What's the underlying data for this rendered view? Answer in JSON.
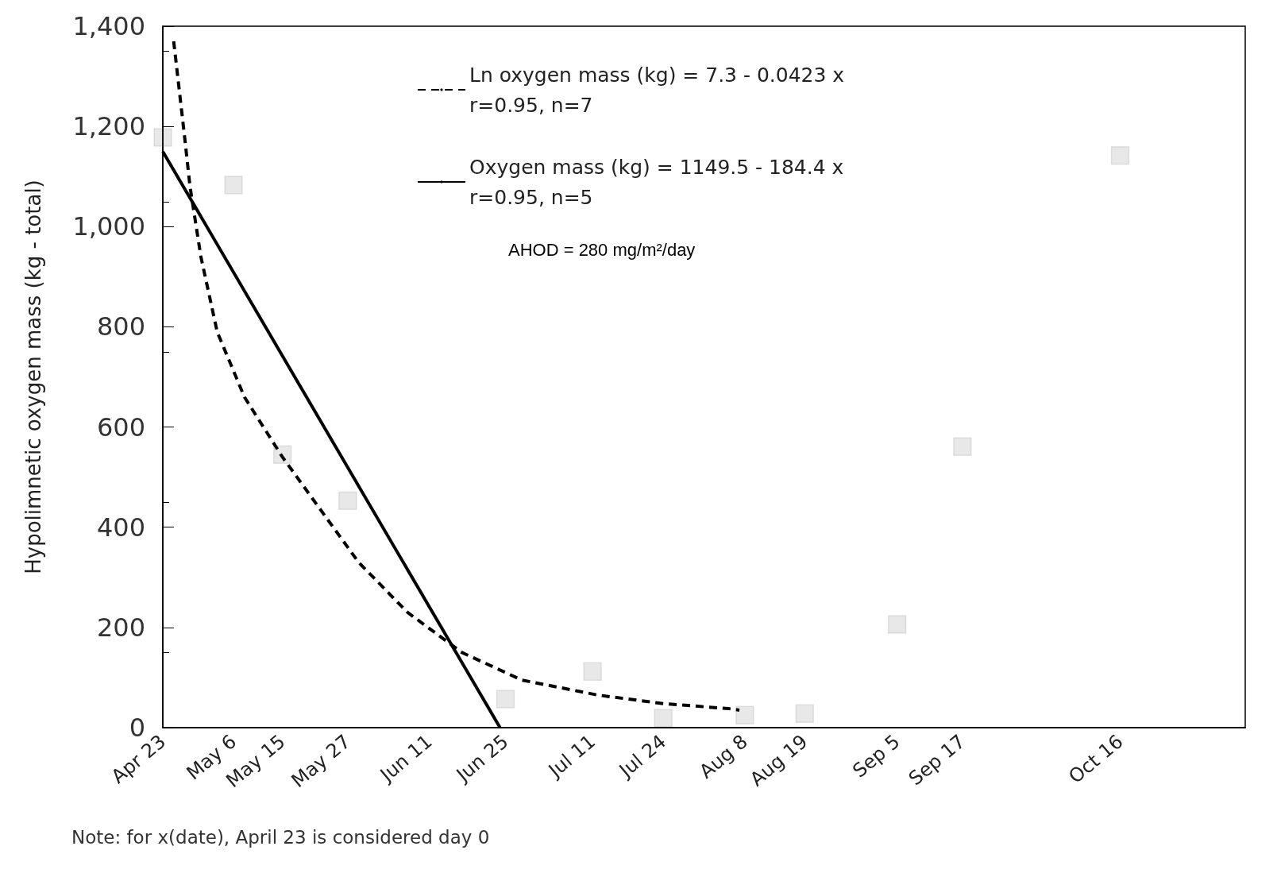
{
  "chart_data": {
    "type": "scatter",
    "ylabel": "Hypolimnetic oxygen mass (kg - total)",
    "xlim": [
      "--04-23",
      "--11-08"
    ],
    "ylim": [
      0,
      1400
    ],
    "xticks": [
      {
        "value": "--04-23",
        "label": "Apr 23"
      },
      {
        "value": "--05-06",
        "label": "May 6"
      },
      {
        "value": "--05-15",
        "label": "May 15"
      },
      {
        "value": "--05-27",
        "label": "May 27"
      },
      {
        "value": "--06-11",
        "label": "Jun 11"
      },
      {
        "value": "--06-25",
        "label": "Jun 25"
      },
      {
        "value": "--07-11",
        "label": "Jul 11"
      },
      {
        "value": "--07-24",
        "label": "Jul 24"
      },
      {
        "value": "--08-08",
        "label": "Aug 8"
      },
      {
        "value": "--08-19",
        "label": "Aug 19"
      },
      {
        "value": "--09-05",
        "label": "Sep 5"
      },
      {
        "value": "--09-17",
        "label": "Sep 17"
      },
      {
        "value": "--10-16",
        "label": "Oct 16"
      }
    ],
    "yticks": [
      0,
      200,
      400,
      600,
      800,
      {
        "value": 1000,
        "label": "1,000"
      },
      {
        "value": 1200,
        "label": "1,200"
      },
      {
        "value": 1400,
        "label": "1,400"
      }
    ],
    "grid": false,
    "legend": "top",
    "series": [
      {
        "color": "#444444",
        "marker": "square",
        "x": [
          "--04-23",
          "--05-06",
          "--05-15",
          "--05-27",
          "--06-25",
          "--07-11",
          "--07-24",
          "--08-08",
          "--08-19",
          "--09-05",
          "--09-17",
          "--10-16"
        ],
        "values": [
          1178,
          1083,
          545,
          453,
          57,
          112,
          19,
          25,
          28,
          206,
          561,
          1142
        ]
      },
      {
        "type": "line",
        "name": "Ln oxygen mass (kg) = 7.3 - 0.0423 x\nr=0.95, n=7",
        "color": "#000000",
        "line_style": "dashed",
        "marker": "none",
        "x": [
          "--04-25",
          "--04-27",
          "--04-28",
          "--04-30",
          "--05-03",
          "--05-08",
          "--05-15",
          "--05-23",
          "--05-29",
          "--06-07",
          "--06-17",
          "--06-28",
          "--07-12",
          "--07-24",
          "--08-05",
          "--08-07"
        ],
        "values": [
          1370,
          1180,
          1080,
          940,
          790,
          660,
          540,
          420,
          330,
          230,
          150,
          95,
          65,
          48,
          38,
          35
        ]
      },
      {
        "type": "line",
        "name": "Oxygen mass (kg) = 1149.5 - 184.4 x\nr=0.95, n=5",
        "color": "#000000",
        "line_style": "solid",
        "marker": "none",
        "x": [
          "--04-23",
          "--06-24"
        ],
        "values": [
          1150,
          0
        ]
      }
    ],
    "annotations": [
      "AHOD = 280 mg/m²/day",
      "Note: for x(date), April 23 is considered day 0"
    ]
  }
}
